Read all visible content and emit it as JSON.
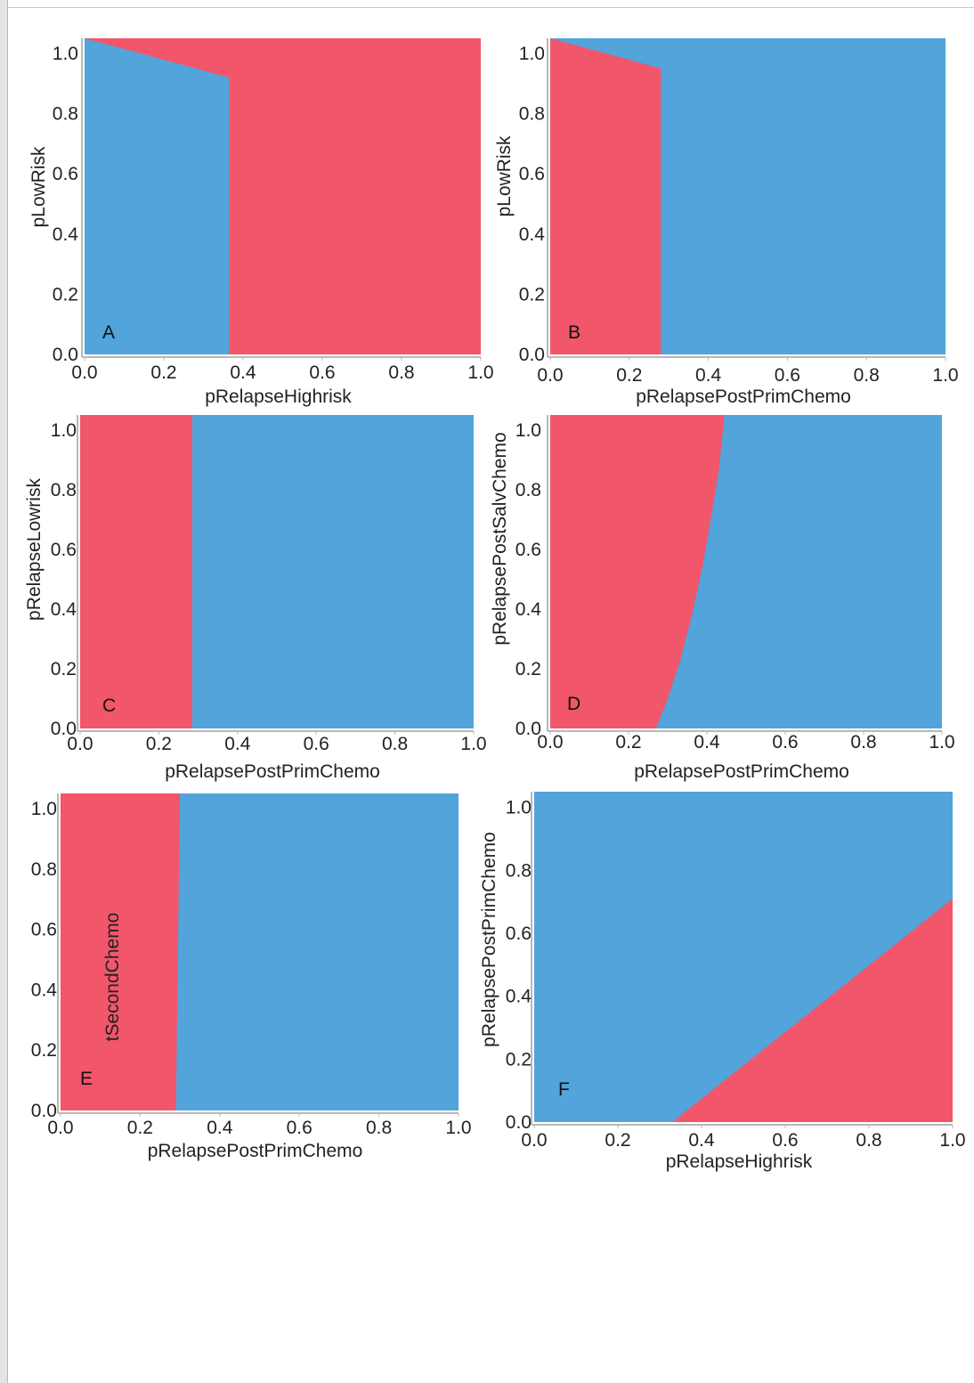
{
  "colors": {
    "red": "#f2566a",
    "blue": "#52a4da",
    "axis": "#b8b8b8"
  },
  "chart_data": [
    {
      "type": "area",
      "panel": "A",
      "xlabel": "pRelapseHighrisk",
      "ylabel": "pLowRisk",
      "xlim": [
        0,
        1.0
      ],
      "ylim": [
        0,
        1.05
      ],
      "xticks": [
        "0.0",
        "0.2",
        "0.4",
        "0.6",
        "0.8",
        "1.0"
      ],
      "yticks": [
        "0.0",
        "0.2",
        "0.4",
        "0.6",
        "0.8",
        "1.0"
      ],
      "background": "red",
      "regions": [
        {
          "color": "blue",
          "points": [
            [
              0,
              0
            ],
            [
              0.365,
              0
            ],
            [
              0.365,
              0.92
            ],
            [
              0,
              1.05
            ]
          ]
        }
      ],
      "grid": false
    },
    {
      "type": "area",
      "panel": "B",
      "xlabel": "pRelapsePostPrimChemo",
      "ylabel": "pLowRisk",
      "xlim": [
        0,
        1.0
      ],
      "ylim": [
        0,
        1.05
      ],
      "xticks": [
        "0.0",
        "0.2",
        "0.4",
        "0.6",
        "0.8",
        "1.0"
      ],
      "yticks": [
        "0.0",
        "0.2",
        "0.4",
        "0.6",
        "0.8",
        "1.0"
      ],
      "background": "blue",
      "regions": [
        {
          "color": "red",
          "points": [
            [
              0,
              0
            ],
            [
              0.28,
              0
            ],
            [
              0.28,
              0.95
            ],
            [
              0,
              1.05
            ]
          ]
        }
      ],
      "grid": false
    },
    {
      "type": "area",
      "panel": "C",
      "xlabel": "pRelapsePostPrimChemo",
      "ylabel": "pRelapseLowrisk",
      "xlim": [
        0,
        1.0
      ],
      "ylim": [
        0,
        1.05
      ],
      "xticks": [
        "0.0",
        "0.2",
        "0.4",
        "0.6",
        "0.8",
        "1.0"
      ],
      "yticks": [
        "0.0",
        "0.2",
        "0.4",
        "0.6",
        "0.8",
        "1.0"
      ],
      "background": "blue",
      "regions": [
        {
          "color": "red",
          "points": [
            [
              0,
              0
            ],
            [
              0.285,
              0
            ],
            [
              0.285,
              1.05
            ],
            [
              0,
              1.05
            ]
          ]
        }
      ],
      "grid": false
    },
    {
      "type": "area",
      "panel": "D",
      "xlabel": "pRelapsePostPrimChemo",
      "ylabel": "pRelapsePostSalvChemo",
      "xlim": [
        0,
        1.0
      ],
      "ylim": [
        0,
        1.05
      ],
      "xticks": [
        "0.0",
        "0.2",
        "0.4",
        "0.6",
        "0.8",
        "1.0"
      ],
      "yticks": [
        "0.0",
        "0.2",
        "0.4",
        "0.6",
        "0.8",
        "1.0"
      ],
      "background": "blue",
      "regions": [
        {
          "color": "red",
          "points": [
            [
              0,
              0
            ],
            [
              0.27,
              0
            ],
            [
              0.3,
              0.1
            ],
            [
              0.33,
              0.22
            ],
            [
              0.36,
              0.37
            ],
            [
              0.39,
              0.55
            ],
            [
              0.41,
              0.7
            ],
            [
              0.43,
              0.86
            ],
            [
              0.445,
              1.05
            ],
            [
              0,
              1.05
            ]
          ]
        }
      ],
      "grid": false
    },
    {
      "type": "area",
      "panel": "E",
      "xlabel": "pRelapsePostPrimChemo",
      "ylabel": "tSecondChemo",
      "xlim": [
        0,
        1.0
      ],
      "ylim": [
        0,
        1.05
      ],
      "xticks": [
        "0.0",
        "0.2",
        "0.4",
        "0.6",
        "0.8",
        "1.0"
      ],
      "yticks": [
        "0.0",
        "0.2",
        "0.4",
        "0.6",
        "0.8",
        "1.0"
      ],
      "background": "blue",
      "regions": [
        {
          "color": "red",
          "points": [
            [
              0,
              0
            ],
            [
              0.29,
              0
            ],
            [
              0.3,
              1.05
            ],
            [
              0,
              1.05
            ]
          ]
        }
      ],
      "grid": false
    },
    {
      "type": "area",
      "panel": "F",
      "xlabel": "pRelapseHighrisk",
      "ylabel": "pRelapsePostPrimChemo",
      "xlim": [
        0,
        1.0
      ],
      "ylim": [
        0,
        1.05
      ],
      "xticks": [
        "0.0",
        "0.2",
        "0.4",
        "0.6",
        "0.8",
        "1.0"
      ],
      "yticks": [
        "0.0",
        "0.2",
        "0.4",
        "0.6",
        "0.8",
        "1.0"
      ],
      "background": "blue",
      "regions": [
        {
          "color": "red",
          "points": [
            [
              0.33,
              0
            ],
            [
              1.0,
              0
            ],
            [
              1.0,
              0.71
            ]
          ]
        }
      ],
      "grid": false
    }
  ]
}
